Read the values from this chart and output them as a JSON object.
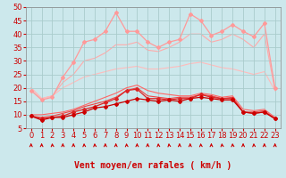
{
  "bg_color": "#cce8ec",
  "grid_color": "#aacccc",
  "xlabel": "Vent moyen/en rafales ( km/h )",
  "xlim": [
    -0.5,
    23.5
  ],
  "ylim": [
    5,
    50
  ],
  "yticks": [
    5,
    10,
    15,
    20,
    25,
    30,
    35,
    40,
    45,
    50
  ],
  "xticks": [
    0,
    1,
    2,
    3,
    4,
    5,
    6,
    7,
    8,
    9,
    10,
    11,
    12,
    13,
    14,
    15,
    16,
    17,
    18,
    19,
    20,
    21,
    22,
    23
  ],
  "lines": [
    {
      "y": [
        9.5,
        8,
        9,
        9,
        10,
        11,
        12.5,
        13,
        14,
        15,
        16,
        15.5,
        15,
        15.5,
        15,
        16,
        16.5,
        16,
        15.5,
        15.5,
        11,
        10.5,
        11,
        8.5
      ],
      "color": "#cc0000",
      "linewidth": 0.9,
      "marker": "D",
      "markersize": 2.0,
      "zorder": 5
    },
    {
      "y": [
        9.5,
        8.5,
        9,
        9.5,
        11,
        12,
        13,
        14.5,
        16,
        19,
        19.5,
        16,
        16,
        15.5,
        16,
        16,
        17.5,
        16.5,
        16,
        16,
        11,
        10.5,
        11,
        8.5
      ],
      "color": "#dd2222",
      "linewidth": 0.9,
      "marker": "D",
      "markersize": 2.0,
      "zorder": 4
    },
    {
      "y": [
        9.5,
        9,
        9.5,
        10.5,
        11.5,
        13,
        14,
        15,
        16.5,
        19,
        20,
        17,
        16.5,
        16,
        16.5,
        16.5,
        17.5,
        17,
        16,
        16.5,
        11,
        11,
        11.5,
        8.5
      ],
      "color": "#ee4444",
      "linewidth": 0.8,
      "marker": null,
      "markersize": 0,
      "zorder": 3
    },
    {
      "y": [
        10,
        10,
        10.5,
        11,
        12,
        13.5,
        15,
        16.5,
        18,
        20,
        21,
        19,
        18,
        17.5,
        17,
        17,
        18,
        17.5,
        16.5,
        17,
        12,
        11.5,
        12,
        9
      ],
      "color": "#ff6666",
      "linewidth": 0.8,
      "marker": null,
      "markersize": 0,
      "zorder": 2
    },
    {
      "y": [
        19,
        15.5,
        16.5,
        24,
        29.5,
        37,
        38,
        41,
        48,
        41,
        41,
        37,
        35,
        37,
        38,
        47.5,
        45,
        39.5,
        41,
        43.5,
        41,
        39,
        44,
        20
      ],
      "color": "#ff9999",
      "linewidth": 0.9,
      "marker": "D",
      "markersize": 2.0,
      "zorder": 6
    },
    {
      "y": [
        20,
        16,
        17,
        22,
        25,
        30,
        31,
        33,
        36,
        36,
        37,
        34,
        33.5,
        35,
        37,
        40,
        40,
        37,
        38,
        40,
        38,
        35,
        40,
        19
      ],
      "color": "#ffaaaa",
      "linewidth": 0.8,
      "marker": null,
      "markersize": 0,
      "zorder": 1
    },
    {
      "y": [
        20,
        16,
        17,
        20,
        22,
        24,
        25,
        26,
        27,
        27.5,
        28,
        27,
        27,
        27.5,
        28,
        29,
        29.5,
        28.5,
        27.5,
        27,
        26,
        25,
        26,
        19
      ],
      "color": "#ffbbbb",
      "linewidth": 0.8,
      "marker": null,
      "markersize": 0,
      "zorder": 1
    }
  ],
  "arrow_color": "#cc0000",
  "xlabel_color": "#cc0000",
  "xlabel_fontsize": 7,
  "tick_color": "#cc0000",
  "tick_fontsize": 6
}
